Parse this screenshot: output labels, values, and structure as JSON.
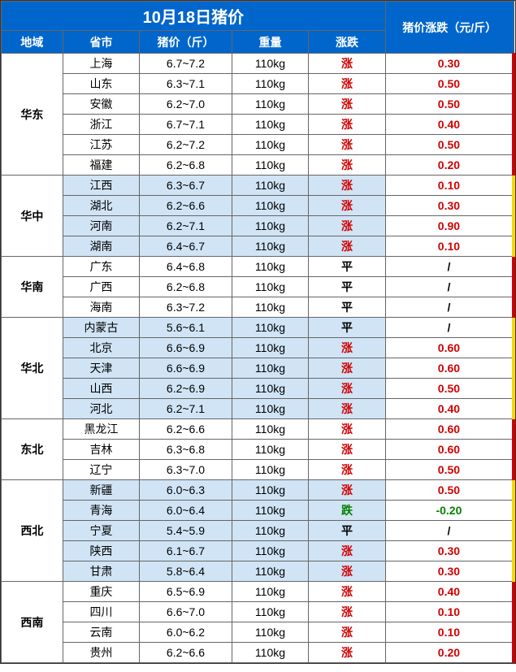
{
  "title": "10月18日猪价",
  "header_change": "猪价涨跌（元/斤）",
  "headers": {
    "region": "地域",
    "province": "省市",
    "price": "猪价（斤）",
    "weight": "重量",
    "trend": "涨跌"
  },
  "trend_labels": {
    "up": "涨",
    "flat": "平",
    "down": "跌"
  },
  "colors": {
    "header_bg": "#0066cc",
    "header_fg": "#ffffff",
    "alt_row_bg": "#d0e4f5",
    "border": "#666666",
    "up": "#d00000",
    "down": "#008000",
    "edge_red": "#d00000",
    "edge_yellow": "#ffd700"
  },
  "font_sizes": {
    "title": 20,
    "header": 14,
    "cell": 14
  },
  "column_widths_pct": [
    12,
    15,
    18,
    15,
    15,
    25
  ],
  "regions": [
    {
      "name": "华东",
      "alt": false,
      "edge": "red",
      "rows": [
        {
          "province": "上海",
          "price": "6.7~7.2",
          "weight": "110kg",
          "trend": "up",
          "change": "0.30"
        },
        {
          "province": "山东",
          "price": "6.3~7.1",
          "weight": "110kg",
          "trend": "up",
          "change": "0.50"
        },
        {
          "province": "安徽",
          "price": "6.2~7.0",
          "weight": "110kg",
          "trend": "up",
          "change": "0.50"
        },
        {
          "province": "浙江",
          "price": "6.7~7.1",
          "weight": "110kg",
          "trend": "up",
          "change": "0.40"
        },
        {
          "province": "江苏",
          "price": "6.2~7.2",
          "weight": "110kg",
          "trend": "up",
          "change": "0.50"
        },
        {
          "province": "福建",
          "price": "6.2~6.8",
          "weight": "110kg",
          "trend": "up",
          "change": "0.20"
        }
      ]
    },
    {
      "name": "华中",
      "alt": true,
      "edge": "yellow",
      "rows": [
        {
          "province": "江西",
          "price": "6.3~6.7",
          "weight": "110kg",
          "trend": "up",
          "change": "0.10"
        },
        {
          "province": "湖北",
          "price": "6.2~6.6",
          "weight": "110kg",
          "trend": "up",
          "change": "0.30"
        },
        {
          "province": "河南",
          "price": "6.2~7.1",
          "weight": "110kg",
          "trend": "up",
          "change": "0.90"
        },
        {
          "province": "湖南",
          "price": "6.4~6.7",
          "weight": "110kg",
          "trend": "up",
          "change": "0.10"
        }
      ]
    },
    {
      "name": "华南",
      "alt": false,
      "edge": "red",
      "rows": [
        {
          "province": "广东",
          "price": "6.4~6.8",
          "weight": "110kg",
          "trend": "flat",
          "change": "/"
        },
        {
          "province": "广西",
          "price": "6.2~6.8",
          "weight": "110kg",
          "trend": "flat",
          "change": "/"
        },
        {
          "province": "海南",
          "price": "6.3~7.2",
          "weight": "110kg",
          "trend": "flat",
          "change": "/"
        }
      ]
    },
    {
      "name": "华北",
      "alt": true,
      "edge": "yellow",
      "rows": [
        {
          "province": "内蒙古",
          "price": "5.6~6.1",
          "weight": "110kg",
          "trend": "flat",
          "change": "/"
        },
        {
          "province": "北京",
          "price": "6.6~6.9",
          "weight": "110kg",
          "trend": "up",
          "change": "0.60"
        },
        {
          "province": "天津",
          "price": "6.6~6.9",
          "weight": "110kg",
          "trend": "up",
          "change": "0.60"
        },
        {
          "province": "山西",
          "price": "6.2~6.9",
          "weight": "110kg",
          "trend": "up",
          "change": "0.50"
        },
        {
          "province": "河北",
          "price": "6.2~7.1",
          "weight": "110kg",
          "trend": "up",
          "change": "0.40"
        }
      ]
    },
    {
      "name": "东北",
      "alt": false,
      "edge": "red",
      "rows": [
        {
          "province": "黑龙江",
          "price": "6.2~6.6",
          "weight": "110kg",
          "trend": "up",
          "change": "0.60"
        },
        {
          "province": "吉林",
          "price": "6.3~6.8",
          "weight": "110kg",
          "trend": "up",
          "change": "0.60"
        },
        {
          "province": "辽宁",
          "price": "6.3~7.0",
          "weight": "110kg",
          "trend": "up",
          "change": "0.50"
        }
      ]
    },
    {
      "name": "西北",
      "alt": true,
      "edge": "yellow",
      "rows": [
        {
          "province": "新疆",
          "price": "6.0~6.3",
          "weight": "110kg",
          "trend": "up",
          "change": "0.50"
        },
        {
          "province": "青海",
          "price": "6.0~6.4",
          "weight": "110kg",
          "trend": "down",
          "change": "-0.20"
        },
        {
          "province": "宁夏",
          "price": "5.4~5.9",
          "weight": "110kg",
          "trend": "flat",
          "change": "/"
        },
        {
          "province": "陕西",
          "price": "6.1~6.7",
          "weight": "110kg",
          "trend": "up",
          "change": "0.30"
        },
        {
          "province": "甘肃",
          "price": "5.8~6.4",
          "weight": "110kg",
          "trend": "up",
          "change": "0.30"
        }
      ]
    },
    {
      "name": "西南",
      "alt": false,
      "edge": "red",
      "rows": [
        {
          "province": "重庆",
          "price": "6.5~6.9",
          "weight": "110kg",
          "trend": "up",
          "change": "0.40"
        },
        {
          "province": "四川",
          "price": "6.6~7.0",
          "weight": "110kg",
          "trend": "up",
          "change": "0.10"
        },
        {
          "province": "云南",
          "price": "6.0~6.2",
          "weight": "110kg",
          "trend": "up",
          "change": "0.10"
        },
        {
          "province": "贵州",
          "price": "6.2~6.6",
          "weight": "110kg",
          "trend": "up",
          "change": "0.20"
        }
      ]
    }
  ]
}
